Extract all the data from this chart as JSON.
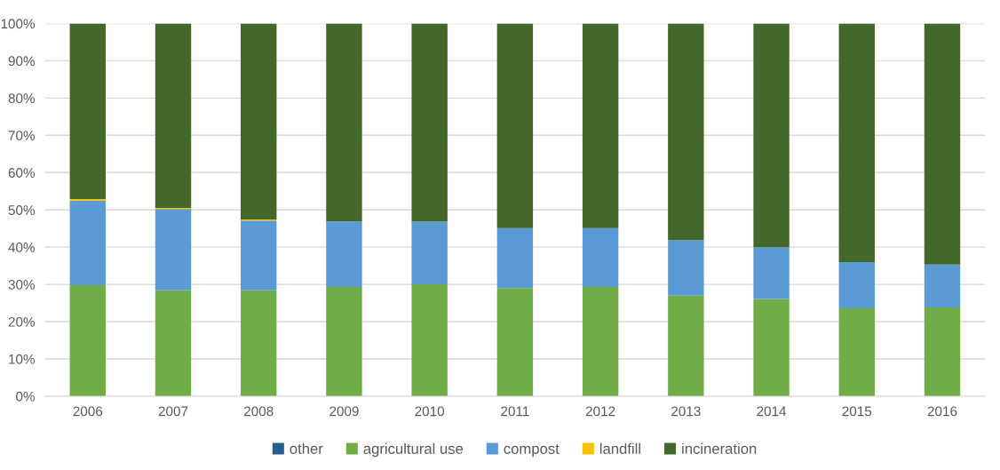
{
  "chart_data": {
    "type": "bar",
    "stacked": true,
    "categories": [
      "2006",
      "2007",
      "2008",
      "2009",
      "2010",
      "2011",
      "2012",
      "2013",
      "2014",
      "2015",
      "2016"
    ],
    "series": [
      {
        "name": "other",
        "color": "#255e91",
        "values": [
          0,
          0,
          0,
          0,
          0,
          0,
          0,
          0,
          0,
          0,
          0
        ]
      },
      {
        "name": "agricultural use",
        "color": "#70ad47",
        "values": [
          29.8,
          28.4,
          28.4,
          29.3,
          30.0,
          29.0,
          29.3,
          27.0,
          26.1,
          23.6,
          23.8
        ]
      },
      {
        "name": "compost",
        "color": "#5b9bd5",
        "values": [
          22.7,
          21.8,
          18.7,
          17.6,
          16.8,
          16.1,
          15.8,
          14.9,
          13.9,
          12.4,
          11.5
        ]
      },
      {
        "name": "landfill",
        "color": "#ffc000",
        "values": [
          0.4,
          0.3,
          0.3,
          0,
          0,
          0,
          0,
          0,
          0,
          0,
          0
        ]
      },
      {
        "name": "incineration",
        "color": "#43682b",
        "values": [
          47.1,
          49.5,
          52.6,
          53.1,
          53.2,
          54.9,
          54.9,
          58.1,
          60.0,
          64.0,
          64.7
        ]
      }
    ],
    "ylim": [
      0,
      100
    ],
    "yticks": [
      {
        "value": 0,
        "label": "0%"
      },
      {
        "value": 10,
        "label": "10%"
      },
      {
        "value": 20,
        "label": "20%"
      },
      {
        "value": 30,
        "label": "30%"
      },
      {
        "value": 40,
        "label": "40%"
      },
      {
        "value": 50,
        "label": "50%"
      },
      {
        "value": 60,
        "label": "60%"
      },
      {
        "value": 70,
        "label": "70%"
      },
      {
        "value": 80,
        "label": "80%"
      },
      {
        "value": 90,
        "label": "90%"
      },
      {
        "value": 100,
        "label": "100%"
      }
    ],
    "grid": "y",
    "legend": "bottom"
  }
}
